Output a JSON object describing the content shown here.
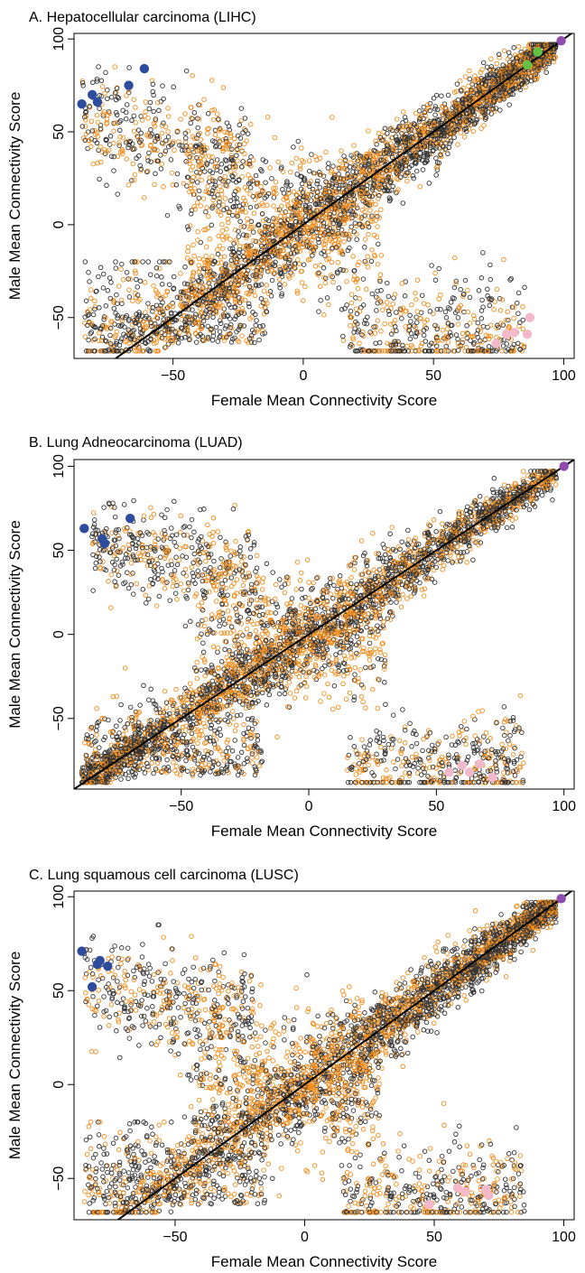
{
  "chart_data": [
    {
      "type": "scatter",
      "title": "A. Hepatocellular carcinoma (LIHC)",
      "xlabel": "Female Mean Connectivity Score",
      "ylabel": "Male Mean Connectivity Score",
      "xlim": [
        -88,
        104
      ],
      "ylim": [
        -72,
        103
      ],
      "xticks": [
        -50,
        0,
        50,
        100
      ],
      "yticks": [
        -50,
        0,
        50,
        100
      ],
      "tick_labels_x": [
        "−50",
        "0",
        "50",
        "100"
      ],
      "tick_labels_y": [
        "−50",
        "0",
        "50",
        "100"
      ],
      "identity_line": true,
      "background_colors": [
        "#333333",
        "#f28c1a"
      ],
      "highlight_points": [
        {
          "color": "#2e4c9e",
          "points": [
            [
              -85,
              65
            ],
            [
              -81,
              70
            ],
            [
              -79,
              66
            ],
            [
              -67,
              75
            ],
            [
              -61,
              84
            ]
          ]
        },
        {
          "color": "#63c144",
          "points": [
            [
              86,
              86
            ],
            [
              90,
              93
            ]
          ]
        },
        {
          "color": "#8e4cae",
          "points": [
            [
              99,
              99
            ]
          ]
        },
        {
          "color": "#f3b8c9",
          "points": [
            [
              74,
              -64
            ],
            [
              78,
              -59
            ],
            [
              81,
              -58
            ],
            [
              86,
              -59
            ],
            [
              87,
              -50
            ]
          ]
        }
      ]
    },
    {
      "type": "scatter",
      "title": "B. Lung Adneocarcinoma (LUAD)",
      "xlabel": "Female Mean Connectivity Score",
      "ylabel": "Male Mean Connectivity Score",
      "xlim": [
        -92,
        104
      ],
      "ylim": [
        -92,
        104
      ],
      "xticks": [
        -50,
        0,
        50,
        100
      ],
      "yticks": [
        -50,
        0,
        50,
        100
      ],
      "tick_labels_x": [
        "−50",
        "0",
        "50",
        "100"
      ],
      "tick_labels_y": [
        "−50",
        "0",
        "50",
        "100"
      ],
      "identity_line": true,
      "background_colors": [
        "#333333",
        "#f28c1a"
      ],
      "highlight_points": [
        {
          "color": "#2e4c9e",
          "points": [
            [
              -88,
              63
            ],
            [
              -81,
              57
            ],
            [
              -80,
              54
            ],
            [
              -70,
              69
            ]
          ]
        },
        {
          "color": "#8e4cae",
          "points": [
            [
              100,
              100
            ]
          ]
        },
        {
          "color": "#f3b8c9",
          "points": [
            [
              55,
              -82
            ],
            [
              60,
              -78
            ],
            [
              63,
              -82
            ],
            [
              67,
              -77
            ],
            [
              72,
              -85
            ]
          ]
        }
      ]
    },
    {
      "type": "scatter",
      "title": "C. Lung squamous cell carcinoma (LUSC)",
      "xlabel": "Female Mean Connectivity Score",
      "ylabel": "Male Mean Connectivity Score",
      "xlim": [
        -89,
        104
      ],
      "ylim": [
        -72,
        103
      ],
      "xticks": [
        -50,
        0,
        50,
        100
      ],
      "yticks": [
        -50,
        0,
        50,
        100
      ],
      "tick_labels_x": [
        "−50",
        "0",
        "50",
        "100"
      ],
      "tick_labels_y": [
        "−50",
        "0",
        "50",
        "100"
      ],
      "identity_line": true,
      "background_colors": [
        "#333333",
        "#f28c1a"
      ],
      "highlight_points": [
        {
          "color": "#2e4c9e",
          "points": [
            [
              -86,
              71
            ],
            [
              -82,
              52
            ],
            [
              -80,
              64
            ],
            [
              -79,
              66
            ],
            [
              -76,
              63
            ]
          ]
        },
        {
          "color": "#8e4cae",
          "points": [
            [
              99,
              99
            ]
          ]
        },
        {
          "color": "#f3b8c9",
          "points": [
            [
              48,
              -64
            ],
            [
              59,
              -55
            ],
            [
              62,
              -57
            ],
            [
              70,
              -56
            ],
            [
              71,
              -59
            ]
          ]
        }
      ]
    }
  ]
}
